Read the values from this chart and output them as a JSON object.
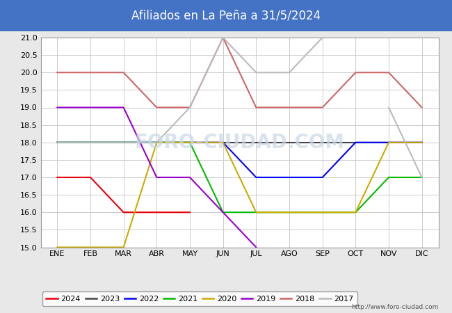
{
  "title": "Afiliados en La Peña a 31/5/2024",
  "title_bg": "#4472c4",
  "title_color": "white",
  "ylim": [
    15.0,
    21.0
  ],
  "yticks": [
    15.0,
    15.5,
    16.0,
    16.5,
    17.0,
    17.5,
    18.0,
    18.5,
    19.0,
    19.5,
    20.0,
    20.5,
    21.0
  ],
  "months": [
    "ENE",
    "FEB",
    "MAR",
    "ABR",
    "MAY",
    "JUN",
    "JUL",
    "AGO",
    "SEP",
    "OCT",
    "NOV",
    "DIC"
  ],
  "series": {
    "2024": {
      "color": "#e8000b",
      "data": [
        17,
        17,
        16,
        16,
        16,
        null,
        null,
        null,
        null,
        null,
        null,
        null
      ]
    },
    "2023": {
      "color": "#444444",
      "data": [
        18,
        18,
        18,
        18,
        18,
        18,
        18,
        18,
        18,
        18,
        18,
        18
      ]
    },
    "2022": {
      "color": "#0000ff",
      "data": [
        18,
        18,
        18,
        18,
        18,
        18,
        17,
        17,
        17,
        18,
        18,
        18
      ]
    },
    "2021": {
      "color": "#00bb00",
      "data": [
        18,
        18,
        18,
        18,
        18,
        16,
        16,
        16,
        16,
        16,
        17,
        17
      ]
    },
    "2020": {
      "color": "#ccaa00",
      "data": [
        15,
        15,
        15,
        18,
        18,
        18,
        16,
        16,
        16,
        16,
        18,
        18
      ]
    },
    "2019": {
      "color": "#9900cc",
      "data": [
        19,
        19,
        19,
        17,
        17,
        16,
        15,
        null,
        null,
        null,
        null,
        null
      ]
    },
    "2018": {
      "color": "#cc6666",
      "data": [
        20,
        20,
        20,
        19,
        19,
        21,
        19,
        19,
        19,
        20,
        20,
        19
      ]
    },
    "2017": {
      "color": "#bbbbbb",
      "data": [
        18,
        18,
        18,
        18,
        19,
        21,
        20,
        20,
        21,
        null,
        19,
        17
      ]
    }
  },
  "url": "http://www.foro-ciudad.com",
  "bg_color": "#e8e8e8",
  "plot_bg": "#ffffff",
  "grid_color": "#cccccc",
  "watermark_color": "#c8d8e8",
  "watermark_text": "FORO-CIUDAD.COM"
}
